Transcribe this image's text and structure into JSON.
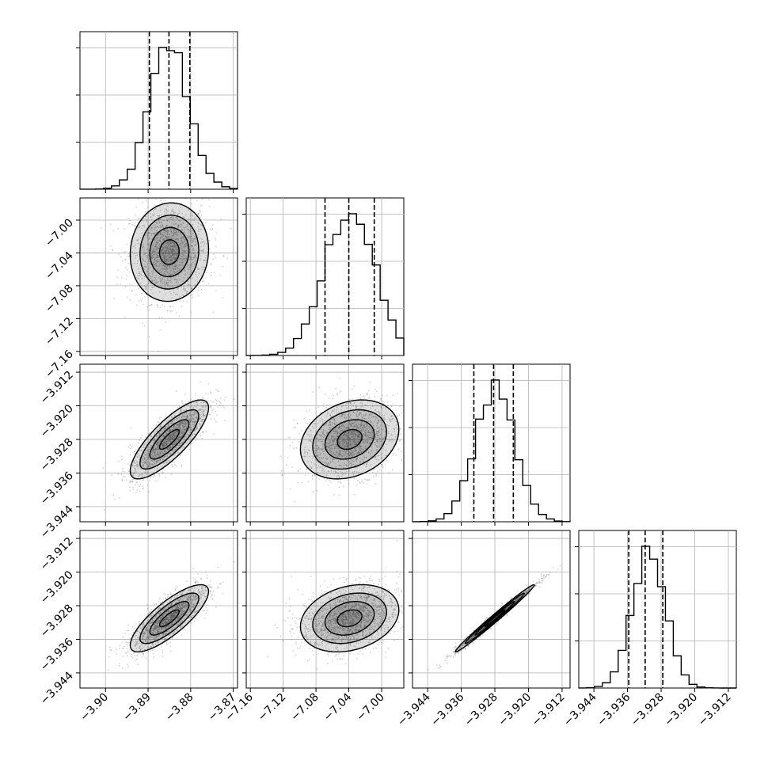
{
  "chart_data": {
    "type": "corner",
    "grid": true,
    "parameters": [
      {
        "axis_range": [
          -3.906,
          -3.869
        ],
        "ticks": [
          -3.9,
          -3.89,
          -3.88,
          -3.87
        ],
        "tick_labels": [
          "−3.90",
          "−3.89",
          "−3.88",
          "−3.87"
        ],
        "quantiles": [
          -3.8897,
          -3.8851,
          -3.8802
        ],
        "mean": -3.885,
        "sd": 0.0046
      },
      {
        "axis_range": [
          -7.165,
          -6.973
        ],
        "ticks": [
          -7.16,
          -7.12,
          -7.08,
          -7.04,
          -7.0
        ],
        "tick_labels": [
          "−7.16",
          "−7.12",
          "−7.08",
          "−7.04",
          "−7.00"
        ],
        "quantiles": [
          -7.069,
          -7.04,
          -7.009
        ],
        "mean": -7.039,
        "sd": 0.03
      },
      {
        "axis_range": [
          -3.9476,
          -3.9101
        ],
        "ticks": [
          -3.944,
          -3.936,
          -3.928,
          -3.92,
          -3.912
        ],
        "tick_labels": [
          "−3.944",
          "−3.936",
          "−3.928",
          "−3.920",
          "−3.912"
        ],
        "quantiles": [
          -3.933,
          -3.9283,
          -3.9236
        ],
        "mean": -3.928,
        "sd": 0.0047
      },
      {
        "axis_range": [
          -3.9476,
          -3.9101
        ],
        "ticks": [
          -3.944,
          -3.936,
          -3.928,
          -3.92,
          -3.912
        ],
        "tick_labels": [
          "−3.944",
          "−3.936",
          "−3.928",
          "−3.920",
          "−3.912"
        ],
        "quantiles": [
          -3.9357,
          -3.9318,
          -3.9276
        ],
        "mean": -3.931,
        "sd": 0.004
      }
    ],
    "correlations": [
      {
        "i": 1,
        "j": 0,
        "rho": 0.05
      },
      {
        "i": 2,
        "j": 0,
        "rho": 0.8
      },
      {
        "i": 2,
        "j": 1,
        "rho": 0.25
      },
      {
        "i": 3,
        "j": 0,
        "rho": 0.8
      },
      {
        "i": 3,
        "j": 1,
        "rho": 0.25
      },
      {
        "i": 3,
        "j": 2,
        "rho": 0.99
      }
    ],
    "colors": {
      "line": "#000000",
      "grid": "#b0b0b0",
      "points": "#7f7f7f"
    }
  }
}
